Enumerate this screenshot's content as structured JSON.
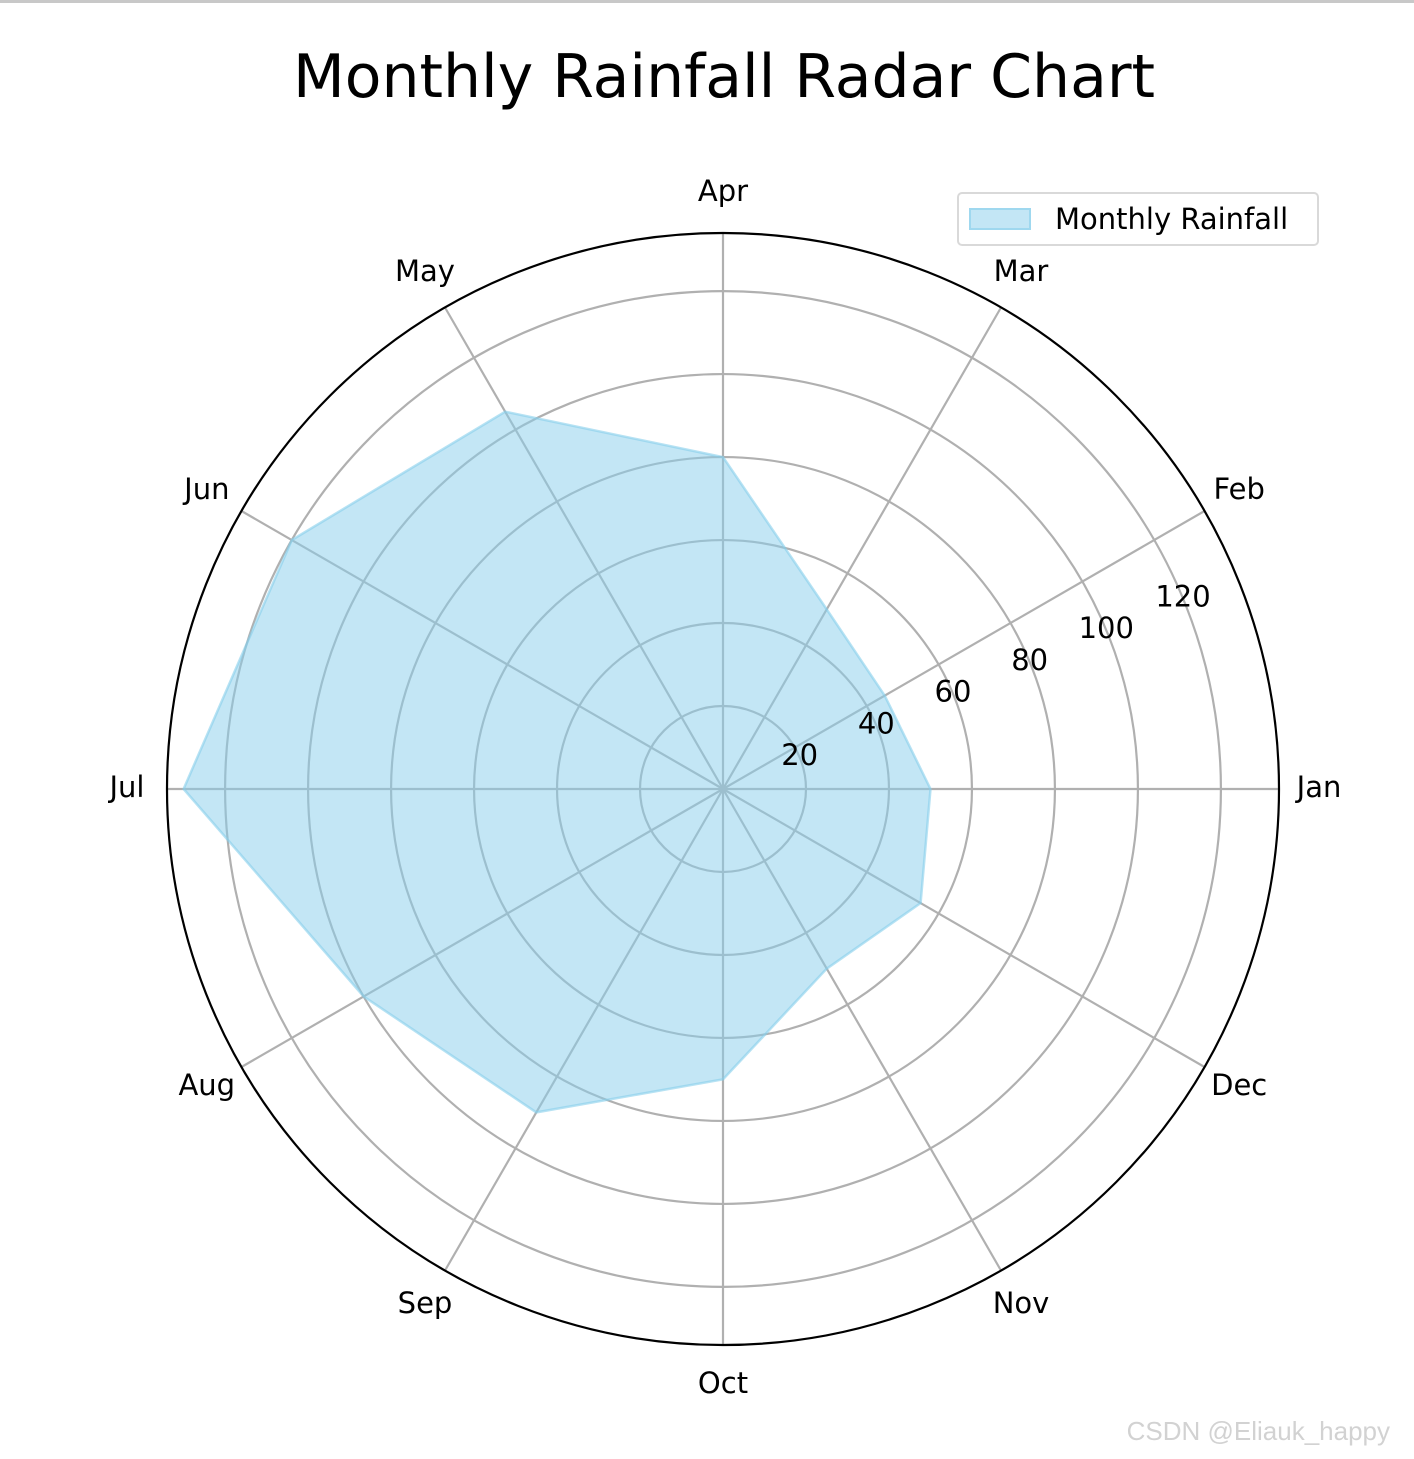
{
  "chart_data": {
    "type": "radar",
    "title": "Monthly Rainfall Radar Chart",
    "categories": [
      "Jan",
      "Feb",
      "Mar",
      "Apr",
      "May",
      "Jun",
      "Jul",
      "Aug",
      "Sep",
      "Oct",
      "Nov",
      "Dec"
    ],
    "series": [
      {
        "name": "Monthly Rainfall",
        "values": [
          50,
          45,
          50,
          80,
          105,
          120,
          130,
          100,
          90,
          70,
          50,
          55
        ]
      }
    ],
    "rlim": [
      0,
      134
    ],
    "rticks": [
      20,
      40,
      60,
      80,
      100,
      120
    ],
    "rtick_labels": [
      "20",
      "40",
      "60",
      "80",
      "100",
      "120"
    ],
    "grid": true,
    "legend": "top-right",
    "fill_color": "#87ceeb",
    "fill_alpha": 0.5
  },
  "watermark": "CSDN @Eliauk_happy"
}
